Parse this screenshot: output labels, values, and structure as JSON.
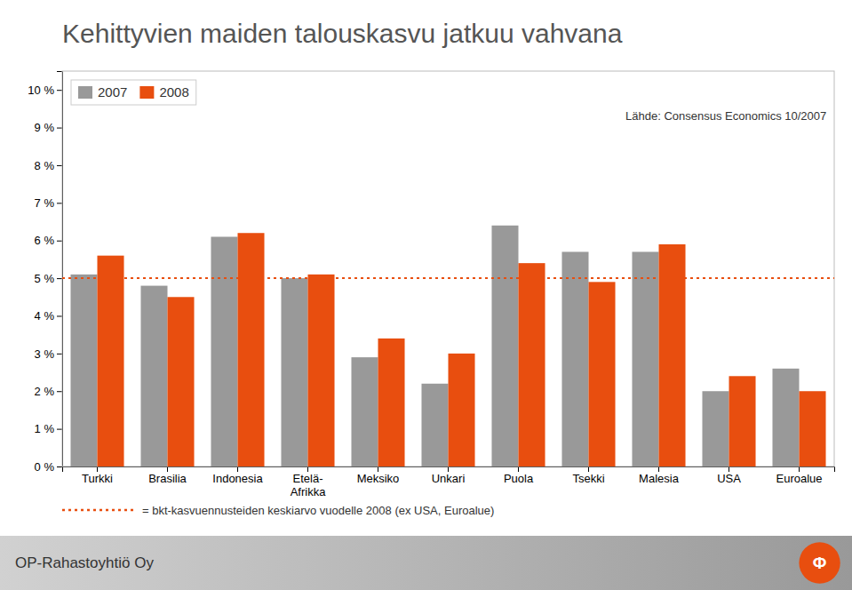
{
  "chart_data": {
    "type": "bar",
    "title": "Kehittyvien maiden talouskasvu jatkuu vahvana",
    "categories": [
      "Turkki",
      "Brasilia",
      "Indonesia",
      "Etelä-\nAfrikka",
      "Meksiko",
      "Unkari",
      "Puola",
      "Tsekki",
      "Malesia",
      "USA",
      "Euroalue"
    ],
    "series": [
      {
        "name": "2007",
        "color": "#999999",
        "values": [
          5.1,
          4.8,
          6.1,
          5.0,
          2.9,
          2.2,
          6.4,
          5.7,
          5.7,
          2.0,
          2.6
        ]
      },
      {
        "name": "2008",
        "color": "#e84e0f",
        "values": [
          5.6,
          4.5,
          6.2,
          5.1,
          3.4,
          3.0,
          5.4,
          4.9,
          5.9,
          2.4,
          2.0
        ]
      }
    ],
    "ylim": [
      0,
      10.5
    ],
    "yticks": [
      {
        "value": 0,
        "label": "0 %"
      },
      {
        "value": 1,
        "label": "1 %"
      },
      {
        "value": 2,
        "label": "2 %"
      },
      {
        "value": 3,
        "label": "3 %"
      },
      {
        "value": 4,
        "label": "4 %"
      },
      {
        "value": 5,
        "label": "5 %"
      },
      {
        "value": 6,
        "label": "6 %"
      },
      {
        "value": 7,
        "label": "7 %"
      },
      {
        "value": 8,
        "label": "8 %"
      },
      {
        "value": 9,
        "label": "9 %"
      },
      {
        "value": 10,
        "label": "10 %"
      }
    ],
    "grid": false,
    "legend": "upper left",
    "reference_line": {
      "value": 5.0,
      "color": "#e84e0f",
      "label": "= bkt-kasvuennusteiden keskiarvo vuodelle 2008 (ex USA, Euroalue)"
    },
    "annotations": [
      {
        "text": "Lähde: Consensus Economics 10/2007"
      }
    ],
    "footer": "OP-Rahastoyhtiö Oy",
    "logo": {
      "text": "Φ",
      "color": "#e84e0f"
    }
  }
}
